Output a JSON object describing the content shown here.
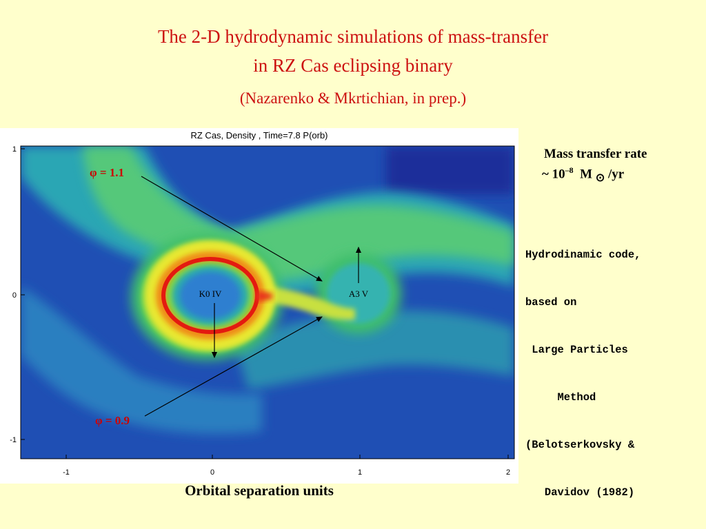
{
  "slide": {
    "title_line1": "The 2-D hydrodynamic simulations of mass-transfer",
    "title_line2": "in RZ Cas eclipsing binary",
    "citation": "(Nazarenko & Mkrtichian, in prep.)",
    "x_axis_caption": "Orbital separation units"
  },
  "figure": {
    "header": "RZ Cas,  Density , Time=7.8 P(orb)",
    "x_ticks": [
      "-1",
      "0",
      "1",
      "2"
    ],
    "y_ticks": [
      "1",
      "0",
      "-1"
    ],
    "star_primary_label": "K0 IV",
    "star_secondary_label": "A3 V",
    "phase_top": "φ = 1.1",
    "phase_bottom": "φ = 0.9"
  },
  "side_panel": {
    "rate_line1": "Mass transfer rate",
    "rate_prefix": "~ 10",
    "rate_exponent": "–8",
    "rate_unit_m": "M",
    "rate_sun_symbol": "⊙",
    "rate_unit_suffix": "/yr",
    "code_lines": [
      "Hydrodinamic code,",
      "based on",
      " Large Particles",
      "     Method",
      "(Belotserkovsky &",
      "   Davidov (1982)"
    ]
  },
  "colors": {
    "title": "#cc1111",
    "background": "#ffffcc",
    "phase_labels": "#cc0000"
  }
}
